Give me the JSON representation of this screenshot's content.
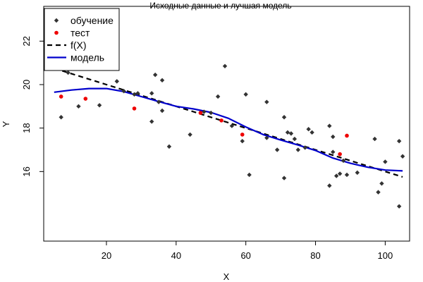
{
  "chart_data": {
    "type": "scatter",
    "title": "Исходные данные и лучшая модель",
    "xlabel": "X",
    "ylabel": "Y",
    "xlim": [
      2,
      107
    ],
    "ylim": [
      12.8,
      23.6
    ],
    "x_ticks": [
      20,
      40,
      60,
      80,
      100
    ],
    "y_ticks": [
      16,
      18,
      20,
      22
    ],
    "grid": false,
    "legend": {
      "position": "top-left",
      "entries": [
        {
          "label": "обучение",
          "kind": "point",
          "color": "#333333",
          "shape": "diamond"
        },
        {
          "label": "тест",
          "kind": "point",
          "color": "#ee0000",
          "shape": "circle"
        },
        {
          "label": "f(X)",
          "kind": "line",
          "color": "#000000",
          "dash": true
        },
        {
          "label": "модель",
          "kind": "line",
          "color": "#0000cc",
          "dash": false
        }
      ]
    },
    "series": [
      {
        "name": "обучение",
        "type": "scatter",
        "color": "#333333",
        "marker": "diamond",
        "points": [
          [
            7,
            18.5
          ],
          [
            9,
            20.55
          ],
          [
            12,
            19.0
          ],
          [
            18,
            19.05
          ],
          [
            23,
            20.15
          ],
          [
            25,
            19.7
          ],
          [
            28,
            19.55
          ],
          [
            29,
            19.6
          ],
          [
            33,
            18.3
          ],
          [
            33,
            19.6
          ],
          [
            34,
            20.45
          ],
          [
            35,
            19.2
          ],
          [
            36,
            20.2
          ],
          [
            36,
            18.8
          ],
          [
            38,
            17.15
          ],
          [
            44,
            17.7
          ],
          [
            48,
            18.75
          ],
          [
            50,
            18.7
          ],
          [
            52,
            19.45
          ],
          [
            54,
            20.85
          ],
          [
            56,
            18.1
          ],
          [
            59,
            17.4
          ],
          [
            60,
            19.55
          ],
          [
            61,
            15.85
          ],
          [
            66,
            19.2
          ],
          [
            66,
            17.55
          ],
          [
            69,
            17.0
          ],
          [
            71,
            15.7
          ],
          [
            71,
            18.5
          ],
          [
            72,
            17.8
          ],
          [
            73,
            17.75
          ],
          [
            74,
            17.5
          ],
          [
            75,
            17.0
          ],
          [
            77,
            17.1
          ],
          [
            78,
            17.95
          ],
          [
            79,
            17.8
          ],
          [
            84,
            18.1
          ],
          [
            84,
            15.35
          ],
          [
            85,
            16.9
          ],
          [
            85,
            17.6
          ],
          [
            86,
            15.8
          ],
          [
            87,
            15.9
          ],
          [
            88,
            16.5
          ],
          [
            89,
            15.85
          ],
          [
            92,
            15.95
          ],
          [
            97,
            17.5
          ],
          [
            98,
            15.05
          ],
          [
            99,
            15.45
          ],
          [
            100,
            16.45
          ],
          [
            104,
            14.4
          ],
          [
            104,
            17.4
          ],
          [
            105,
            16.7
          ]
        ]
      },
      {
        "name": "тест",
        "type": "scatter",
        "color": "#ee0000",
        "marker": "circle",
        "points": [
          [
            7,
            19.45
          ],
          [
            14,
            19.35
          ],
          [
            28,
            18.9
          ],
          [
            47,
            18.7
          ],
          [
            53,
            18.35
          ],
          [
            59,
            17.7
          ],
          [
            87,
            16.8
          ],
          [
            89,
            17.65
          ]
        ]
      },
      {
        "name": "f(X)",
        "type": "line",
        "color": "#000000",
        "dash": true,
        "points": [
          [
            5,
            20.75
          ],
          [
            10,
            20.5
          ],
          [
            15,
            20.25
          ],
          [
            20,
            20.0
          ],
          [
            25,
            19.75
          ],
          [
            30,
            19.5
          ],
          [
            35,
            19.25
          ],
          [
            40,
            19.0
          ],
          [
            45,
            18.75
          ],
          [
            50,
            18.5
          ],
          [
            55,
            18.25
          ],
          [
            60,
            18.0
          ],
          [
            65,
            17.75
          ],
          [
            70,
            17.5
          ],
          [
            75,
            17.25
          ],
          [
            80,
            17.0
          ],
          [
            85,
            16.75
          ],
          [
            90,
            16.5
          ],
          [
            95,
            16.25
          ],
          [
            100,
            16.0
          ],
          [
            105,
            15.75
          ]
        ]
      },
      {
        "name": "модель",
        "type": "line",
        "color": "#0000cc",
        "dash": false,
        "points": [
          [
            5,
            19.65
          ],
          [
            10,
            19.75
          ],
          [
            15,
            19.82
          ],
          [
            20,
            19.82
          ],
          [
            25,
            19.68
          ],
          [
            30,
            19.45
          ],
          [
            35,
            19.22
          ],
          [
            40,
            19.0
          ],
          [
            45,
            18.88
          ],
          [
            50,
            18.72
          ],
          [
            55,
            18.45
          ],
          [
            60,
            18.05
          ],
          [
            65,
            17.7
          ],
          [
            70,
            17.45
          ],
          [
            75,
            17.22
          ],
          [
            80,
            16.97
          ],
          [
            85,
            16.62
          ],
          [
            90,
            16.38
          ],
          [
            95,
            16.2
          ],
          [
            100,
            16.07
          ],
          [
            105,
            16.03
          ]
        ]
      }
    ]
  }
}
